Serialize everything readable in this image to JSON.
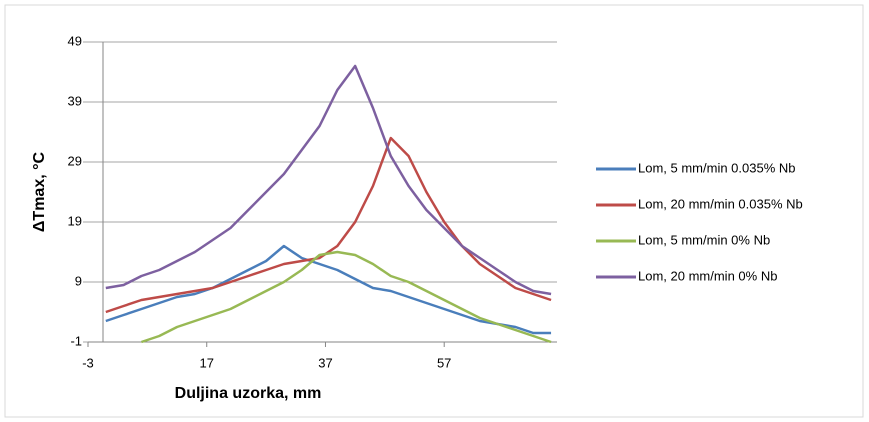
{
  "chart_data": {
    "type": "line",
    "x_label": "Duljina uzorka, mm",
    "y_label": "ΔTmax, °C",
    "x": [
      0,
      3,
      6,
      9,
      12,
      15,
      18,
      21,
      24,
      27,
      30,
      33,
      36,
      39,
      42,
      45,
      48,
      51,
      54,
      57,
      60,
      63,
      66,
      69,
      72,
      75
    ],
    "series": [
      {
        "name": "Lom, 5 mm/min 0.035% Nb",
        "color": "#4a7ebb",
        "values": [
          2.5,
          3.5,
          4.5,
          5.5,
          6.5,
          7,
          8,
          9.5,
          11,
          12.5,
          15,
          13,
          12,
          11,
          9.5,
          8,
          7.5,
          6.5,
          5.5,
          4.5,
          3.5,
          2.5,
          2,
          1.5,
          0.5,
          0.5
        ]
      },
      {
        "name": "Lom, 20 mm/min 0.035% Nb",
        "color": "#be4b48",
        "values": [
          4,
          5,
          6,
          6.5,
          7,
          7.5,
          8,
          9,
          10,
          11,
          12,
          12.5,
          13,
          15,
          19,
          25,
          33,
          30,
          24,
          19,
          15,
          12,
          10,
          8,
          7,
          6
        ]
      },
      {
        "name": "Lom, 5 mm/min 0% Nb",
        "color": "#98b954",
        "values": [
          null,
          null,
          -1,
          0,
          1.5,
          2.5,
          3.5,
          4.5,
          6,
          7.5,
          9,
          11,
          13.5,
          14,
          13.5,
          12,
          10,
          9,
          7.5,
          6,
          4.5,
          3,
          2,
          1,
          0,
          -1
        ]
      },
      {
        "name": "Lom, 20 mm/min 0% Nb",
        "color": "#7d60a0",
        "values": [
          8,
          8.5,
          10,
          11,
          12.5,
          14,
          16,
          18,
          21,
          24,
          27,
          31,
          35,
          41,
          45,
          38,
          30,
          25,
          21,
          18,
          15,
          13,
          11,
          9,
          7.5,
          7
        ]
      }
    ],
    "xlim": [
      -3,
      76
    ],
    "xticks": [
      -3,
      17,
      37,
      57
    ],
    "ylim": [
      -1,
      49
    ],
    "yticks": [
      -1,
      9,
      19,
      29,
      39,
      49
    ],
    "grid": true,
    "legend": "right"
  }
}
